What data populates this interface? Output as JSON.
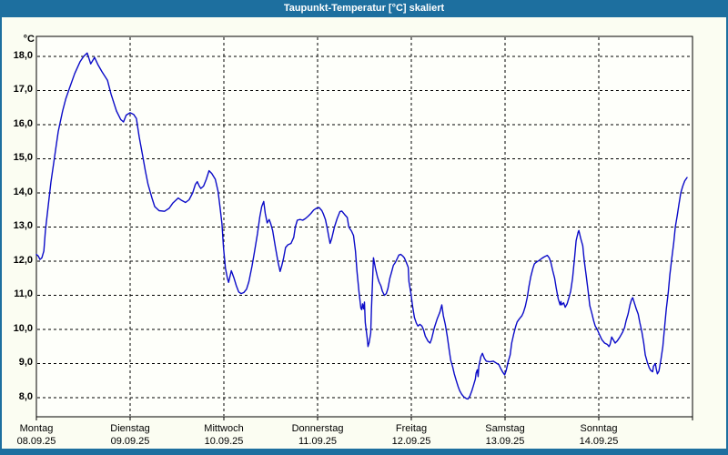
{
  "window": {
    "title": "Taupunkt-Temperatur [°C] skaliert"
  },
  "colors": {
    "titlebar": "#1d6f9f",
    "frame": "#1d6f9f",
    "background": "#fbfdf2",
    "plot_background": "#fefffa",
    "line": "#0b0bc8",
    "grid": "#000000",
    "text": "#000000"
  },
  "axes": {
    "y": {
      "unit": "°C",
      "labels": [
        "18,0",
        "17,0",
        "16,0",
        "15,0",
        "14,0",
        "13,0",
        "12,0",
        "11,0",
        "10,0",
        "9,0",
        "8,0"
      ]
    },
    "x": {
      "days": [
        {
          "day": "Montag",
          "date": "08.09.25"
        },
        {
          "day": "Dienstag",
          "date": "09.09.25"
        },
        {
          "day": "Mittwoch",
          "date": "10.09.25"
        },
        {
          "day": "Donnerstag",
          "date": "11.09.25"
        },
        {
          "day": "Freitag",
          "date": "12.09.25"
        },
        {
          "day": "Samstag",
          "date": "13.09.25"
        },
        {
          "day": "Sonntag",
          "date": "14.09.25"
        }
      ]
    }
  },
  "chart_data": {
    "type": "line",
    "title": "Taupunkt-Temperatur [°C] skaliert",
    "ylabel": "°C",
    "ylim": [
      8,
      18
    ],
    "x_unit": "hours_since_monday_00",
    "xlim": [
      0,
      168
    ],
    "grid": "dashed",
    "legend": "none",
    "series": [
      {
        "name": "Taupunkt",
        "color": "#0b0bc8",
        "points": [
          [
            0,
            12.2
          ],
          [
            0.5,
            12.15
          ],
          [
            0.9,
            12.05
          ],
          [
            1.4,
            12.1
          ],
          [
            1.9,
            12.3
          ],
          [
            2.3,
            12.9
          ],
          [
            3,
            13.6
          ],
          [
            3.7,
            14.3
          ],
          [
            4.7,
            15.1
          ],
          [
            5.6,
            15.8
          ],
          [
            6.7,
            16.4
          ],
          [
            7.5,
            16.75
          ],
          [
            8.4,
            17.05
          ],
          [
            9.8,
            17.5
          ],
          [
            11.2,
            17.85
          ],
          [
            12.1,
            18.0
          ],
          [
            13,
            18.1
          ],
          [
            13.9,
            17.78
          ],
          [
            14.9,
            17.97
          ],
          [
            15.8,
            17.75
          ],
          [
            16.8,
            17.55
          ],
          [
            18.2,
            17.3
          ],
          [
            19.1,
            16.9
          ],
          [
            20.5,
            16.4
          ],
          [
            21.6,
            16.15
          ],
          [
            22.3,
            16.08
          ],
          [
            23,
            16.28
          ],
          [
            24,
            16.35
          ],
          [
            24.9,
            16.3
          ],
          [
            25.6,
            16.18
          ],
          [
            26.3,
            15.65
          ],
          [
            27.2,
            15.1
          ],
          [
            27.9,
            14.65
          ],
          [
            28.6,
            14.25
          ],
          [
            29.6,
            13.85
          ],
          [
            30.3,
            13.6
          ],
          [
            31.4,
            13.48
          ],
          [
            32.8,
            13.46
          ],
          [
            34,
            13.55
          ],
          [
            34.9,
            13.7
          ],
          [
            36.3,
            13.85
          ],
          [
            37.2,
            13.78
          ],
          [
            38.2,
            13.72
          ],
          [
            39.1,
            13.8
          ],
          [
            40,
            14.0
          ],
          [
            40.7,
            14.25
          ],
          [
            41.2,
            14.33
          ],
          [
            41.7,
            14.2
          ],
          [
            42.1,
            14.13
          ],
          [
            42.8,
            14.2
          ],
          [
            43.5,
            14.4
          ],
          [
            44.2,
            14.65
          ],
          [
            44.9,
            14.57
          ],
          [
            45.8,
            14.4
          ],
          [
            46.5,
            14.05
          ],
          [
            47,
            13.6
          ],
          [
            47.5,
            13.1
          ],
          [
            47.9,
            12.4
          ],
          [
            48.4,
            11.8
          ],
          [
            48.9,
            11.5
          ],
          [
            49.2,
            11.38
          ],
          [
            49.9,
            11.72
          ],
          [
            50.6,
            11.5
          ],
          [
            51.2,
            11.28
          ],
          [
            51.8,
            11.1
          ],
          [
            52.4,
            11.05
          ],
          [
            53.1,
            11.08
          ],
          [
            53.8,
            11.18
          ],
          [
            54.4,
            11.4
          ],
          [
            55.2,
            11.85
          ],
          [
            55.8,
            12.25
          ],
          [
            56.6,
            12.8
          ],
          [
            57.2,
            13.3
          ],
          [
            57.7,
            13.6
          ],
          [
            58.2,
            13.75
          ],
          [
            58.6,
            13.4
          ],
          [
            59.1,
            13.12
          ],
          [
            59.6,
            13.22
          ],
          [
            60,
            13.1
          ],
          [
            60.5,
            12.9
          ],
          [
            61.2,
            12.4
          ],
          [
            61.9,
            11.95
          ],
          [
            62.4,
            11.7
          ],
          [
            62.8,
            11.85
          ],
          [
            63.3,
            12.1
          ],
          [
            63.8,
            12.4
          ],
          [
            64.4,
            12.48
          ],
          [
            65.2,
            12.52
          ],
          [
            65.9,
            12.7
          ],
          [
            66.3,
            13.0
          ],
          [
            66.8,
            13.2
          ],
          [
            67.5,
            13.22
          ],
          [
            68.2,
            13.2
          ],
          [
            68.9,
            13.25
          ],
          [
            69.6,
            13.32
          ],
          [
            70.3,
            13.4
          ],
          [
            71,
            13.5
          ],
          [
            71.7,
            13.55
          ],
          [
            72.4,
            13.57
          ],
          [
            73.1,
            13.48
          ],
          [
            73.5,
            13.38
          ],
          [
            74,
            13.22
          ],
          [
            74.5,
            12.95
          ],
          [
            74.9,
            12.7
          ],
          [
            75.2,
            12.52
          ],
          [
            75.6,
            12.65
          ],
          [
            76.3,
            13.0
          ],
          [
            77,
            13.25
          ],
          [
            77.7,
            13.45
          ],
          [
            78.2,
            13.47
          ],
          [
            78.9,
            13.37
          ],
          [
            79.6,
            13.28
          ],
          [
            80,
            13.0
          ],
          [
            80.7,
            12.88
          ],
          [
            81.2,
            12.75
          ],
          [
            81.7,
            12.3
          ],
          [
            82.1,
            11.7
          ],
          [
            82.6,
            11.1
          ],
          [
            83.1,
            10.62
          ],
          [
            83.3,
            10.58
          ],
          [
            83.5,
            10.75
          ],
          [
            83.8,
            10.6
          ],
          [
            84,
            10.8
          ],
          [
            84.2,
            10.2
          ],
          [
            84.7,
            9.75
          ],
          [
            84.9,
            9.5
          ],
          [
            85.2,
            9.62
          ],
          [
            85.6,
            9.9
          ],
          [
            85.8,
            10.6
          ],
          [
            86.3,
            12.1
          ],
          [
            86.8,
            11.8
          ],
          [
            87.3,
            11.55
          ],
          [
            87.7,
            11.4
          ],
          [
            88.2,
            11.28
          ],
          [
            88.6,
            11.12
          ],
          [
            89.1,
            11.0
          ],
          [
            89.6,
            11.05
          ],
          [
            90,
            11.2
          ],
          [
            90.5,
            11.5
          ],
          [
            91,
            11.7
          ],
          [
            91.4,
            11.88
          ],
          [
            91.9,
            11.96
          ],
          [
            92.4,
            12.08
          ],
          [
            92.8,
            12.18
          ],
          [
            93.3,
            12.2
          ],
          [
            93.8,
            12.15
          ],
          [
            94.2,
            12.1
          ],
          [
            94.7,
            11.97
          ],
          [
            95.2,
            11.82
          ],
          [
            95.4,
            11.4
          ],
          [
            95.9,
            11.05
          ],
          [
            96.3,
            10.7
          ],
          [
            96.8,
            10.35
          ],
          [
            97.3,
            10.18
          ],
          [
            97.7,
            10.1
          ],
          [
            98.2,
            10.15
          ],
          [
            98.7,
            10.1
          ],
          [
            99.1,
            10.0
          ],
          [
            99.6,
            9.8
          ],
          [
            100.3,
            9.65
          ],
          [
            100.8,
            9.6
          ],
          [
            101.2,
            9.72
          ],
          [
            101.9,
            10.05
          ],
          [
            102.6,
            10.3
          ],
          [
            103.3,
            10.5
          ],
          [
            103.8,
            10.72
          ],
          [
            104.2,
            10.4
          ],
          [
            104.7,
            10.15
          ],
          [
            105.2,
            9.8
          ],
          [
            105.7,
            9.4
          ],
          [
            106.1,
            9.1
          ],
          [
            106.6,
            8.9
          ],
          [
            107,
            8.7
          ],
          [
            107.5,
            8.5
          ],
          [
            108,
            8.32
          ],
          [
            108.4,
            8.2
          ],
          [
            108.9,
            8.1
          ],
          [
            109.4,
            8.03
          ],
          [
            110.1,
            7.97
          ],
          [
            110.5,
            7.96
          ],
          [
            111,
            8.05
          ],
          [
            111.5,
            8.2
          ],
          [
            111.9,
            8.35
          ],
          [
            112.4,
            8.55
          ],
          [
            112.6,
            8.72
          ],
          [
            112.9,
            8.82
          ],
          [
            113.1,
            8.62
          ],
          [
            113.3,
            8.92
          ],
          [
            113.8,
            9.2
          ],
          [
            114.2,
            9.3
          ],
          [
            114.7,
            9.15
          ],
          [
            115.2,
            9.07
          ],
          [
            116.1,
            9.05
          ],
          [
            117,
            9.07
          ],
          [
            117.7,
            9.02
          ],
          [
            118.4,
            8.97
          ],
          [
            118.9,
            8.85
          ],
          [
            119.4,
            8.75
          ],
          [
            119.9,
            8.67
          ],
          [
            120.3,
            8.8
          ],
          [
            120.8,
            9.05
          ],
          [
            121.3,
            9.25
          ],
          [
            121.7,
            9.6
          ],
          [
            122.2,
            9.85
          ],
          [
            122.7,
            10.08
          ],
          [
            123.1,
            10.22
          ],
          [
            123.6,
            10.3
          ],
          [
            124.3,
            10.4
          ],
          [
            124.7,
            10.5
          ],
          [
            125.2,
            10.68
          ],
          [
            125.7,
            10.95
          ],
          [
            126.1,
            11.25
          ],
          [
            126.6,
            11.55
          ],
          [
            127.1,
            11.78
          ],
          [
            127.5,
            11.92
          ],
          [
            128,
            11.97
          ],
          [
            128.7,
            12.02
          ],
          [
            129.4,
            12.08
          ],
          [
            130.1,
            12.13
          ],
          [
            130.8,
            12.17
          ],
          [
            131.3,
            12.1
          ],
          [
            131.7,
            11.98
          ],
          [
            132.2,
            11.72
          ],
          [
            132.7,
            11.5
          ],
          [
            133.1,
            11.22
          ],
          [
            133.6,
            10.9
          ],
          [
            134.1,
            10.72
          ],
          [
            134.3,
            10.82
          ],
          [
            134.5,
            10.72
          ],
          [
            135,
            10.78
          ],
          [
            135.4,
            10.65
          ],
          [
            135.9,
            10.75
          ],
          [
            136.4,
            10.95
          ],
          [
            136.8,
            11.12
          ],
          [
            137.3,
            11.5
          ],
          [
            137.8,
            12.1
          ],
          [
            138.2,
            12.6
          ],
          [
            138.7,
            12.85
          ],
          [
            138.9,
            12.9
          ],
          [
            139.4,
            12.65
          ],
          [
            139.9,
            12.45
          ],
          [
            140.3,
            12.0
          ],
          [
            140.8,
            11.55
          ],
          [
            141.3,
            11.1
          ],
          [
            141.7,
            10.7
          ],
          [
            142.2,
            10.48
          ],
          [
            142.7,
            10.25
          ],
          [
            143.1,
            10.1
          ],
          [
            143.6,
            10.0
          ],
          [
            144.1,
            9.87
          ],
          [
            144.8,
            9.7
          ],
          [
            145.5,
            9.6
          ],
          [
            146.2,
            9.56
          ],
          [
            146.6,
            9.5
          ],
          [
            146.9,
            9.56
          ],
          [
            147.3,
            9.78
          ],
          [
            147.8,
            9.68
          ],
          [
            148.2,
            9.6
          ],
          [
            148.7,
            9.66
          ],
          [
            149.4,
            9.78
          ],
          [
            150.1,
            9.92
          ],
          [
            150.6,
            10.05
          ],
          [
            151,
            10.25
          ],
          [
            151.5,
            10.45
          ],
          [
            152,
            10.72
          ],
          [
            152.4,
            10.88
          ],
          [
            152.7,
            10.93
          ],
          [
            153.1,
            10.78
          ],
          [
            153.6,
            10.6
          ],
          [
            154.1,
            10.45
          ],
          [
            154.5,
            10.2
          ],
          [
            155,
            9.95
          ],
          [
            155.5,
            9.6
          ],
          [
            155.9,
            9.25
          ],
          [
            156.4,
            9.05
          ],
          [
            156.9,
            8.88
          ],
          [
            157.3,
            8.8
          ],
          [
            157.8,
            8.76
          ],
          [
            158,
            8.92
          ],
          [
            158.5,
            9.0
          ],
          [
            158.7,
            8.85
          ],
          [
            159,
            8.7
          ],
          [
            159.4,
            8.78
          ],
          [
            159.9,
            9.1
          ],
          [
            160.4,
            9.5
          ],
          [
            160.8,
            10.0
          ],
          [
            161.3,
            10.6
          ],
          [
            161.8,
            11.1
          ],
          [
            162.2,
            11.6
          ],
          [
            162.7,
            12.1
          ],
          [
            163.2,
            12.55
          ],
          [
            163.6,
            13.0
          ],
          [
            164.1,
            13.35
          ],
          [
            164.5,
            13.65
          ],
          [
            165,
            14.0
          ],
          [
            165.5,
            14.2
          ],
          [
            166,
            14.35
          ],
          [
            166.6,
            14.45
          ]
        ]
      }
    ]
  }
}
